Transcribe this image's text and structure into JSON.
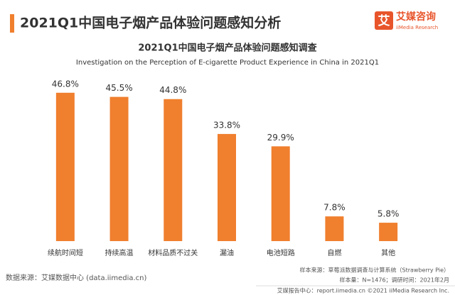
{
  "header": {
    "title": "2021Q1中国电子烟产品体验问题感知分析",
    "logo_icon": "艾",
    "logo_name": "艾媒咨询",
    "logo_sub": "iiMedia Research"
  },
  "chart_data": {
    "type": "bar",
    "title": "2021Q1中国电子烟产品体验问题感知调查",
    "subtitle": "Investigation on the Perception of E-cigarette Product Experience in China in 2021Q1",
    "categories": [
      "续航时间短",
      "持续高温",
      "材料品质不过关",
      "漏油",
      "电池短路",
      "自燃",
      "其他"
    ],
    "values": [
      46.8,
      45.5,
      44.8,
      33.8,
      29.9,
      7.8,
      5.8
    ],
    "value_labels": [
      "46.8%",
      "45.5%",
      "44.8%",
      "33.8%",
      "29.9%",
      "7.8%",
      "5.8%"
    ],
    "color": "#f07f2e"
  },
  "footer": {
    "source": "数据来源：艾媒数据中心 (data.iimedia.cn)",
    "sample_source": "样本来源：草莓派数据调查与计算系统（Strawberry Pie）",
    "sample_size": "样本量：N=1476；调研时间：2021年2月",
    "copyright": "艾媒报告中心：report.iimedia.cn  ©2021  iiMedia Research  Inc."
  }
}
